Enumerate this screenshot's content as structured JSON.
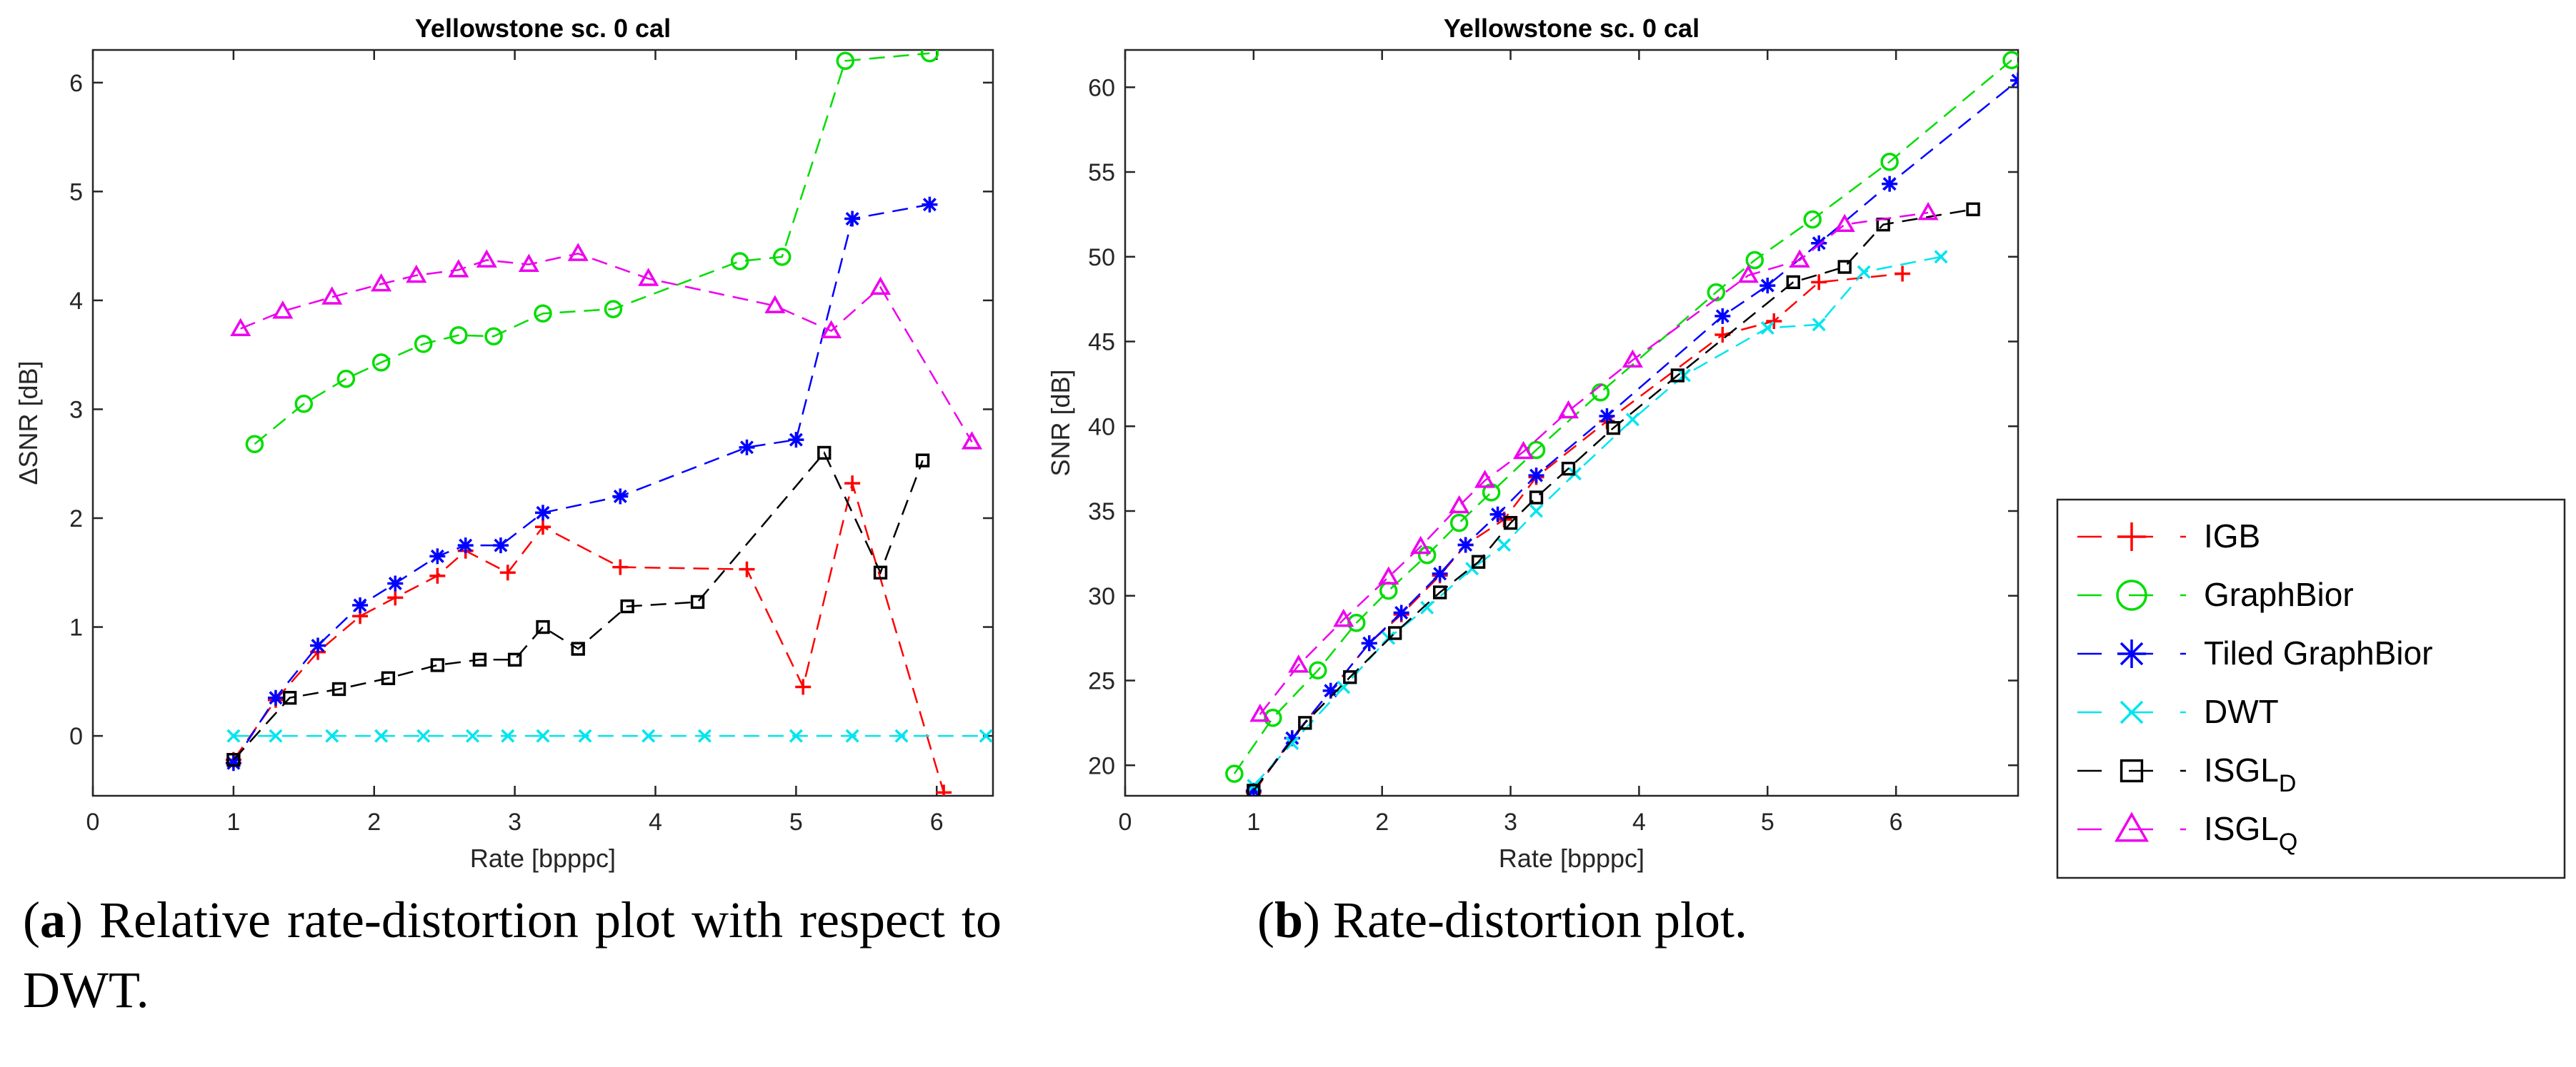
{
  "figure": {
    "caption_a_letter": "a",
    "caption_a_text": " Relative rate-distortion plot with respect to DWT.",
    "caption_b_letter": "b",
    "caption_b_text": " Rate-distortion plot."
  },
  "legend": {
    "entries": [
      {
        "series": "IGB",
        "label": "IGB",
        "sub": ""
      },
      {
        "series": "GraphBior",
        "label": "GraphBior",
        "sub": ""
      },
      {
        "series": "Tiled GraphBior",
        "label": "Tiled GraphBior",
        "sub": ""
      },
      {
        "series": "DWT",
        "label": "DWT",
        "sub": ""
      },
      {
        "series": "ISGL_D",
        "label": "ISGL",
        "sub": "D"
      },
      {
        "series": "ISGL_Q",
        "label": "ISGL",
        "sub": "Q"
      }
    ]
  },
  "styles": {
    "IGB": {
      "color": "#ff0000",
      "marker": "plus"
    },
    "GraphBior": {
      "color": "#00dd00",
      "marker": "circle"
    },
    "Tiled GraphBior": {
      "color": "#0000ff",
      "marker": "asterisk"
    },
    "DWT": {
      "color": "#00e5ee",
      "marker": "x"
    },
    "ISGL_D": {
      "color": "#000000",
      "marker": "square"
    },
    "ISGL_Q": {
      "color": "#ee00ee",
      "marker": "triangle"
    }
  },
  "chart_data": [
    {
      "id": "a",
      "type": "line",
      "title": "Yellowstone sc. 0 cal",
      "xlabel": "Rate [bpppc]",
      "ylabel": "ΔSNR [dB]",
      "xlim": [
        0,
        6.4
      ],
      "ylim": [
        -0.55,
        6.3
      ],
      "xticks": [
        0,
        1,
        2,
        3,
        4,
        5,
        6
      ],
      "yticks": [
        0,
        1,
        2,
        3,
        4,
        5,
        6
      ],
      "grid": false,
      "series": [
        {
          "name": "IGB",
          "points": [
            [
              1.0,
              -0.22
            ],
            [
              1.3,
              0.33
            ],
            [
              1.6,
              0.77
            ],
            [
              1.9,
              1.1
            ],
            [
              2.15,
              1.27
            ],
            [
              2.45,
              1.47
            ],
            [
              2.65,
              1.7
            ],
            [
              2.95,
              1.5
            ],
            [
              3.2,
              1.92
            ],
            [
              3.75,
              1.55
            ],
            [
              4.65,
              1.53
            ],
            [
              5.05,
              0.45
            ],
            [
              5.4,
              2.32
            ],
            [
              6.05,
              -0.52
            ]
          ]
        },
        {
          "name": "GraphBior",
          "points": [
            [
              1.15,
              2.68
            ],
            [
              1.5,
              3.05
            ],
            [
              1.8,
              3.28
            ],
            [
              2.05,
              3.43
            ],
            [
              2.35,
              3.6
            ],
            [
              2.6,
              3.68
            ],
            [
              2.85,
              3.67
            ],
            [
              3.2,
              3.88
            ],
            [
              3.7,
              3.92
            ],
            [
              4.6,
              4.36
            ],
            [
              4.9,
              4.4
            ],
            [
              5.35,
              6.2
            ],
            [
              5.95,
              6.27
            ]
          ]
        },
        {
          "name": "Tiled GraphBior",
          "points": [
            [
              1.0,
              -0.25
            ],
            [
              1.3,
              0.35
            ],
            [
              1.6,
              0.83
            ],
            [
              1.9,
              1.2
            ],
            [
              2.15,
              1.4
            ],
            [
              2.45,
              1.65
            ],
            [
              2.65,
              1.75
            ],
            [
              2.9,
              1.75
            ],
            [
              3.2,
              2.05
            ],
            [
              3.75,
              2.2
            ],
            [
              4.65,
              2.65
            ],
            [
              5.0,
              2.72
            ],
            [
              5.4,
              4.75
            ],
            [
              5.95,
              4.88
            ]
          ]
        },
        {
          "name": "DWT",
          "points": [
            [
              1.0,
              0
            ],
            [
              1.3,
              0
            ],
            [
              1.7,
              0
            ],
            [
              2.05,
              0
            ],
            [
              2.35,
              0
            ],
            [
              2.7,
              0
            ],
            [
              2.95,
              0
            ],
            [
              3.2,
              0
            ],
            [
              3.5,
              0
            ],
            [
              3.95,
              0
            ],
            [
              4.35,
              0
            ],
            [
              5.0,
              0
            ],
            [
              5.4,
              0
            ],
            [
              5.75,
              0
            ],
            [
              6.35,
              0
            ]
          ]
        },
        {
          "name": "ISGL_D",
          "points": [
            [
              1.0,
              -0.22
            ],
            [
              1.4,
              0.35
            ],
            [
              1.75,
              0.43
            ],
            [
              2.1,
              0.53
            ],
            [
              2.45,
              0.65
            ],
            [
              2.75,
              0.7
            ],
            [
              3.0,
              0.7
            ],
            [
              3.2,
              1.0
            ],
            [
              3.45,
              0.8
            ],
            [
              3.8,
              1.19
            ],
            [
              4.3,
              1.23
            ],
            [
              5.2,
              2.6
            ],
            [
              5.6,
              1.5
            ],
            [
              5.9,
              2.53
            ]
          ]
        },
        {
          "name": "ISGL_Q",
          "points": [
            [
              1.05,
              3.74
            ],
            [
              1.35,
              3.9
            ],
            [
              1.7,
              4.03
            ],
            [
              2.05,
              4.15
            ],
            [
              2.3,
              4.23
            ],
            [
              2.6,
              4.28
            ],
            [
              2.8,
              4.37
            ],
            [
              3.1,
              4.33
            ],
            [
              3.45,
              4.43
            ],
            [
              3.95,
              4.2
            ],
            [
              4.85,
              3.95
            ],
            [
              5.25,
              3.72
            ],
            [
              5.6,
              4.12
            ],
            [
              6.25,
              2.7
            ]
          ]
        }
      ]
    },
    {
      "id": "b",
      "type": "line",
      "title": "Yellowstone sc. 0 cal",
      "xlabel": "Rate [bpppc]",
      "ylabel": "SNR [dB]",
      "xlim": [
        0,
        6.95
      ],
      "ylim": [
        18.2,
        62.2
      ],
      "xticks": [
        0,
        1,
        2,
        3,
        4,
        5,
        6
      ],
      "yticks": [
        20,
        25,
        30,
        35,
        40,
        45,
        50,
        55,
        60
      ],
      "grid": false,
      "series": [
        {
          "name": "IGB",
          "points": [
            [
              1.0,
              18.4
            ],
            [
              1.3,
              21.6
            ],
            [
              1.6,
              24.4
            ],
            [
              1.9,
              27.2
            ],
            [
              2.15,
              28.9
            ],
            [
              2.45,
              31.2
            ],
            [
              2.65,
              33.0
            ],
            [
              2.95,
              34.5
            ],
            [
              3.2,
              37.0
            ],
            [
              3.75,
              40.3
            ],
            [
              4.65,
              45.4
            ],
            [
              5.05,
              46.2
            ],
            [
              5.4,
              48.5
            ],
            [
              6.05,
              49.0
            ]
          ]
        },
        {
          "name": "GraphBior",
          "points": [
            [
              0.85,
              19.5
            ],
            [
              1.15,
              22.8
            ],
            [
              1.5,
              25.6
            ],
            [
              1.8,
              28.4
            ],
            [
              2.05,
              30.3
            ],
            [
              2.35,
              32.4
            ],
            [
              2.6,
              34.3
            ],
            [
              2.85,
              36.1
            ],
            [
              3.2,
              38.6
            ],
            [
              3.7,
              42.0
            ],
            [
              4.6,
              47.9
            ],
            [
              4.9,
              49.8
            ],
            [
              5.35,
              52.2
            ],
            [
              5.95,
              55.6
            ],
            [
              6.9,
              61.6
            ]
          ]
        },
        {
          "name": "Tiled GraphBior",
          "points": [
            [
              1.0,
              18.5
            ],
            [
              1.3,
              21.6
            ],
            [
              1.6,
              24.4
            ],
            [
              1.9,
              27.2
            ],
            [
              2.15,
              29.0
            ],
            [
              2.45,
              31.3
            ],
            [
              2.65,
              33.0
            ],
            [
              2.9,
              34.8
            ],
            [
              3.2,
              37.1
            ],
            [
              3.75,
              40.6
            ],
            [
              4.65,
              46.5
            ],
            [
              5.0,
              48.3
            ],
            [
              5.4,
              50.8
            ],
            [
              5.95,
              54.3
            ],
            [
              6.95,
              60.4
            ]
          ]
        },
        {
          "name": "DWT",
          "points": [
            [
              1.0,
              18.8
            ],
            [
              1.3,
              21.3
            ],
            [
              1.7,
              24.6
            ],
            [
              2.05,
              27.5
            ],
            [
              2.35,
              29.3
            ],
            [
              2.7,
              31.6
            ],
            [
              2.95,
              33.0
            ],
            [
              3.2,
              35.0
            ],
            [
              3.5,
              37.2
            ],
            [
              3.95,
              40.4
            ],
            [
              4.35,
              43.0
            ],
            [
              5.0,
              45.8
            ],
            [
              5.4,
              46.0
            ],
            [
              5.75,
              49.1
            ],
            [
              6.35,
              50.0
            ]
          ]
        },
        {
          "name": "ISGL_D",
          "points": [
            [
              1.0,
              18.5
            ],
            [
              1.4,
              22.5
            ],
            [
              1.75,
              25.2
            ],
            [
              2.1,
              27.8
            ],
            [
              2.45,
              30.2
            ],
            [
              2.75,
              32.0
            ],
            [
              3.0,
              34.3
            ],
            [
              3.2,
              35.8
            ],
            [
              3.45,
              37.5
            ],
            [
              3.8,
              39.9
            ],
            [
              4.3,
              43.0
            ],
            [
              5.2,
              48.5
            ],
            [
              5.6,
              49.4
            ],
            [
              5.9,
              51.9
            ],
            [
              6.6,
              52.8
            ]
          ]
        },
        {
          "name": "ISGL_Q",
          "points": [
            [
              1.05,
              23.0
            ],
            [
              1.35,
              25.9
            ],
            [
              1.7,
              28.6
            ],
            [
              2.05,
              31.1
            ],
            [
              2.3,
              32.9
            ],
            [
              2.6,
              35.3
            ],
            [
              2.8,
              36.8
            ],
            [
              3.1,
              38.5
            ],
            [
              3.45,
              40.9
            ],
            [
              3.95,
              43.9
            ],
            [
              4.85,
              48.9
            ],
            [
              5.25,
              49.8
            ],
            [
              5.6,
              51.9
            ],
            [
              6.25,
              52.6
            ]
          ]
        }
      ]
    }
  ]
}
